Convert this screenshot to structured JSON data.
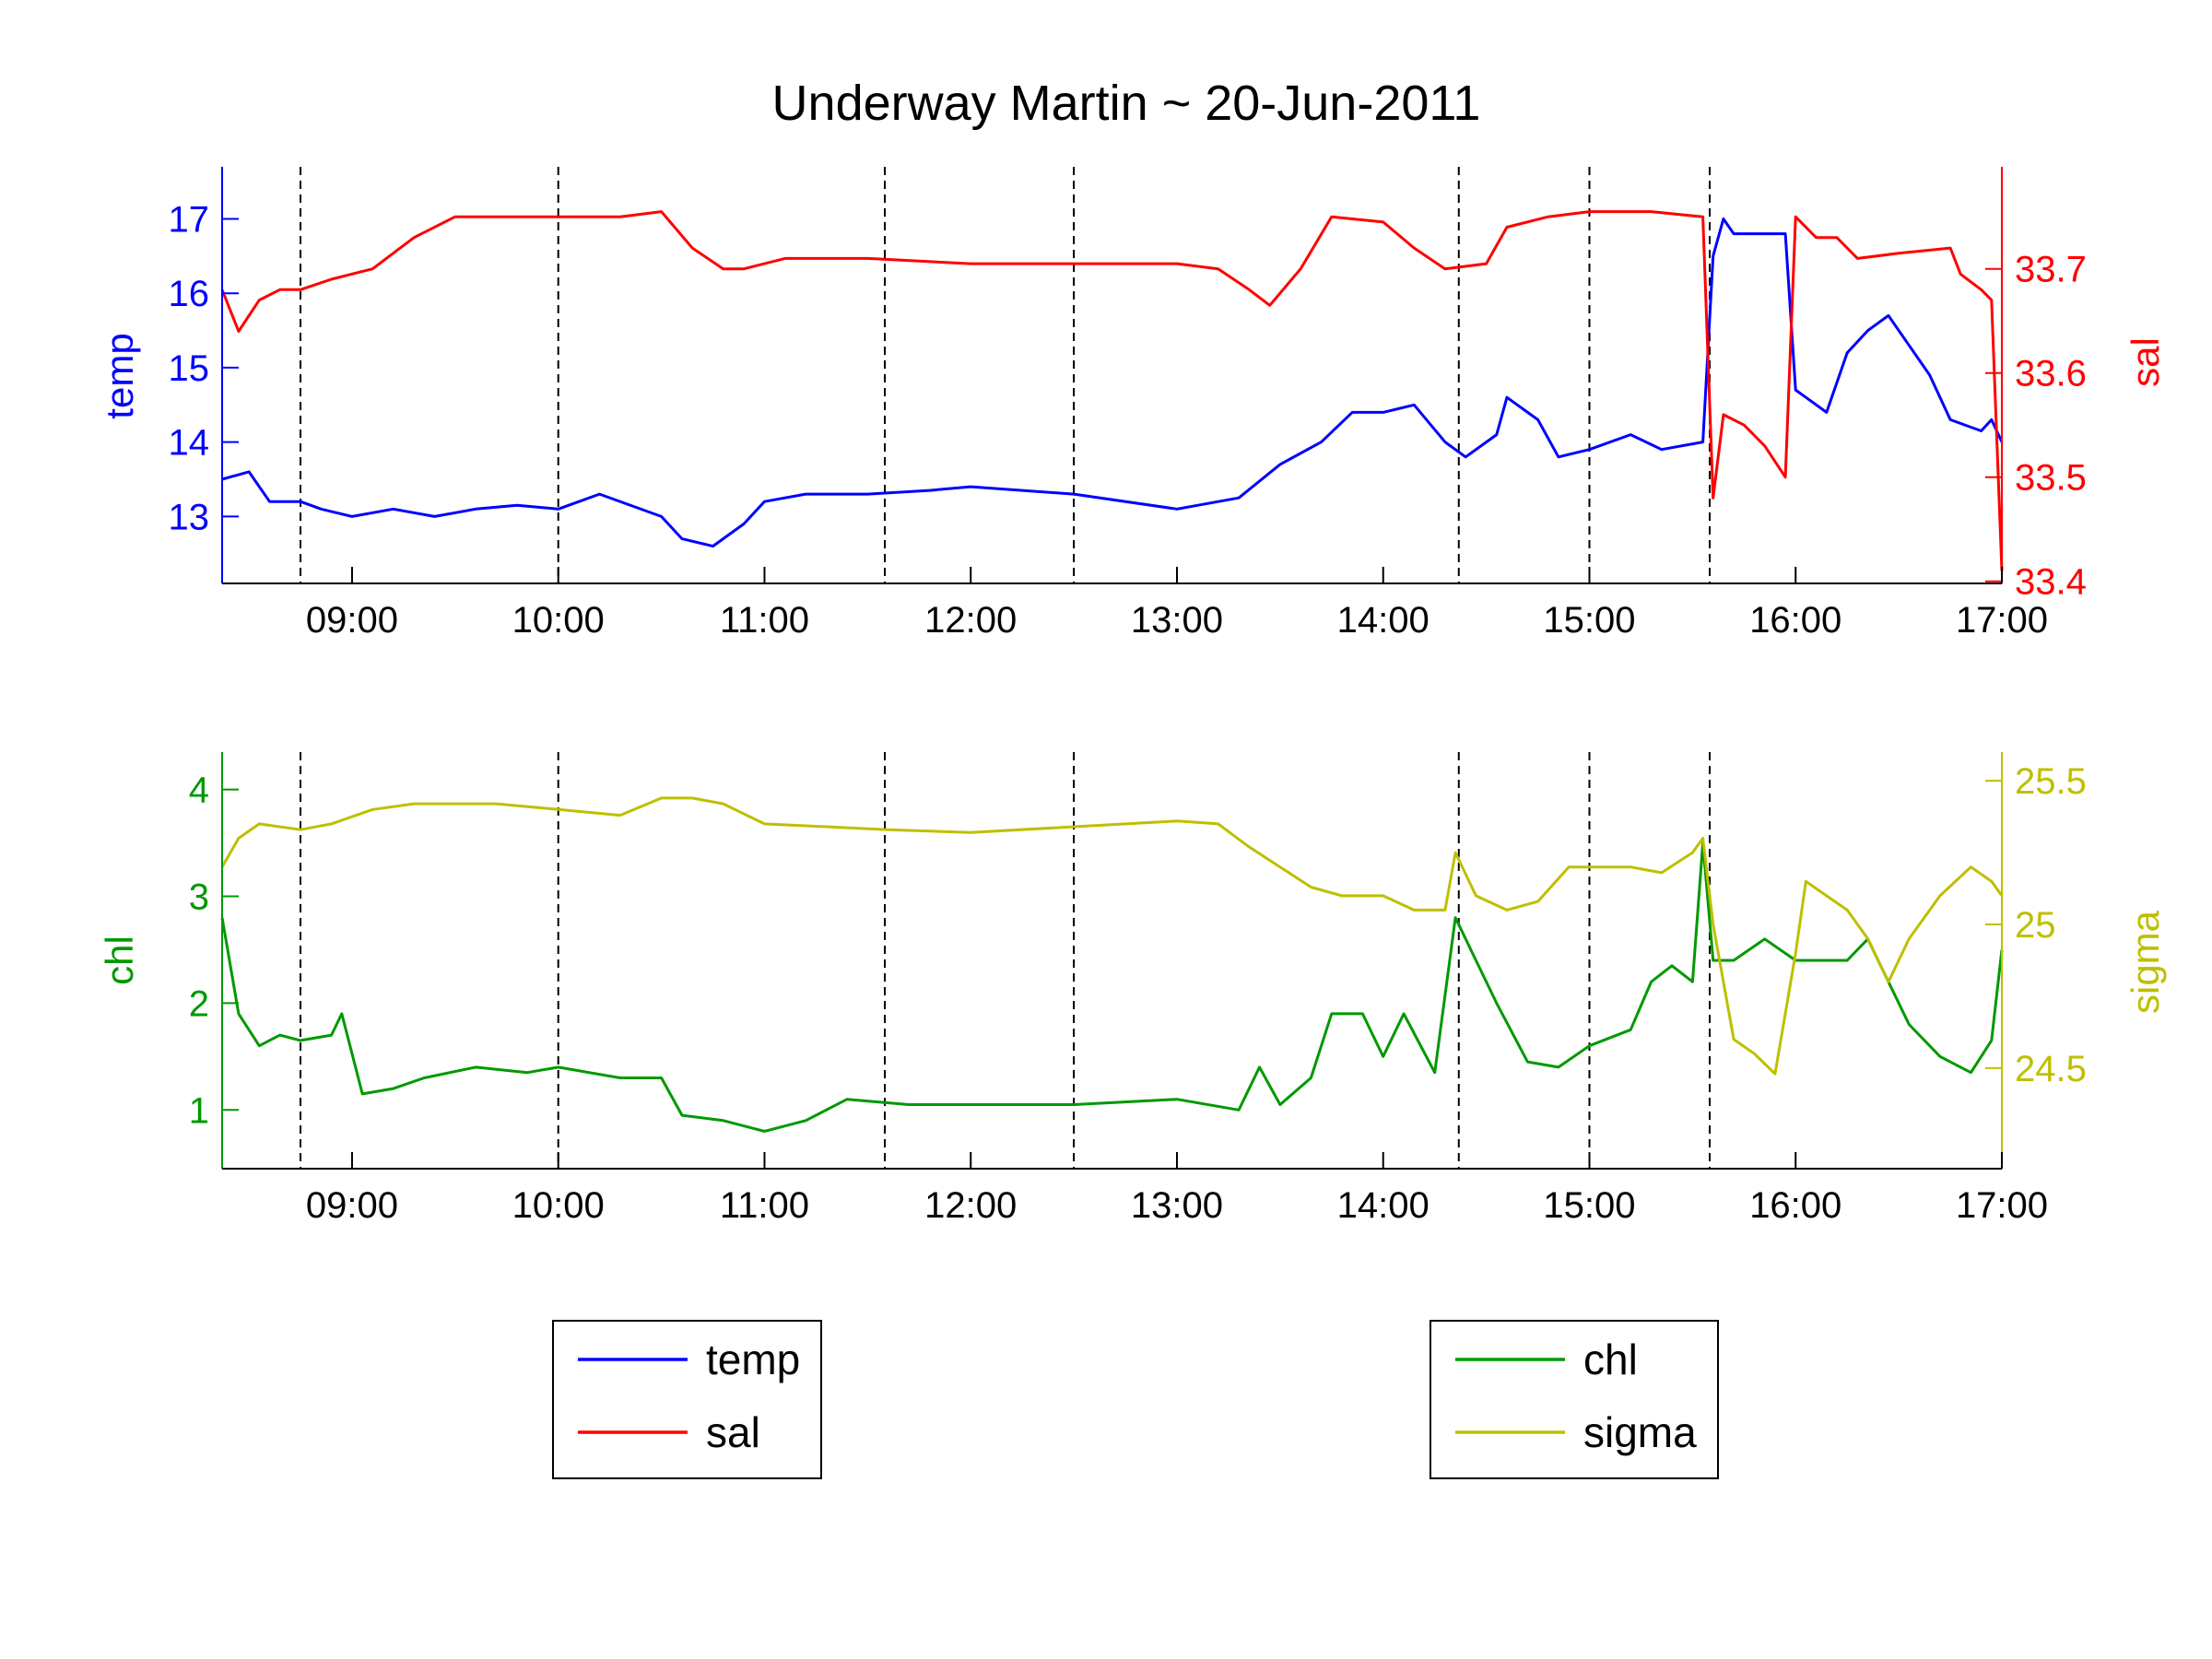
{
  "title": "Underway Martin ~ 20-Jun-2011",
  "x_axis": {
    "ticks": [
      "09:00",
      "10:00",
      "11:00",
      "12:00",
      "13:00",
      "14:00",
      "15:00",
      "16:00",
      "17:00"
    ],
    "range_hours": [
      8.37,
      17.0
    ]
  },
  "vertical_markers": [
    "08:45",
    "10:00",
    "11:35",
    "12:30",
    "14:22",
    "15:00",
    "15:35"
  ],
  "colors": {
    "temp": "#0000ff",
    "sal": "#ff0000",
    "chl": "#009900",
    "sigma": "#bfbf00",
    "axis": "#000000",
    "marker": "#000000"
  },
  "legends": {
    "top": {
      "entries": [
        "temp",
        "sal"
      ]
    },
    "bottom": {
      "entries": [
        "chl",
        "sigma"
      ]
    }
  },
  "chart_data": [
    {
      "type": "line",
      "title": "Underway Martin ~ 20-Jun-2011",
      "x_unit": "time of day (hours)",
      "y_left": {
        "label": "temp",
        "ylim": [
          12.1,
          17.7
        ],
        "ticks": [
          "13",
          "14",
          "15",
          "16",
          "17"
        ],
        "tick_values": [
          13,
          14,
          15,
          16,
          17
        ]
      },
      "y_right": {
        "label": "sal",
        "ylim": [
          33.398,
          33.798
        ],
        "ticks": [
          "33.4",
          "33.5",
          "33.6",
          "33.7"
        ],
        "tick_values": [
          33.4,
          33.5,
          33.6,
          33.7
        ]
      },
      "series": [
        {
          "name": "temp",
          "axis": "left",
          "x": [
            8.37,
            8.5,
            8.6,
            8.75,
            8.85,
            9.0,
            9.2,
            9.4,
            9.6,
            9.8,
            10.0,
            10.2,
            10.5,
            10.6,
            10.75,
            10.9,
            11.0,
            11.2,
            11.5,
            11.8,
            12.0,
            12.5,
            13.0,
            13.3,
            13.5,
            13.7,
            13.85,
            14.0,
            14.15,
            14.3,
            14.4,
            14.55,
            14.6,
            14.75,
            14.85,
            15.0,
            15.2,
            15.35,
            15.55,
            15.6,
            15.65,
            15.7,
            15.85,
            15.95,
            16.0,
            16.05,
            16.15,
            16.25,
            16.35,
            16.45,
            16.55,
            16.65,
            16.75,
            16.85,
            16.9,
            16.95,
            17.0
          ],
          "y": [
            13.5,
            13.6,
            13.2,
            13.2,
            13.1,
            13.0,
            13.1,
            13.0,
            13.1,
            13.15,
            13.1,
            13.3,
            13.0,
            12.7,
            12.6,
            12.9,
            13.2,
            13.3,
            13.3,
            13.35,
            13.4,
            13.3,
            13.1,
            13.25,
            13.7,
            14.0,
            14.4,
            14.4,
            14.5,
            14.0,
            13.8,
            14.1,
            14.6,
            14.3,
            13.8,
            13.9,
            14.1,
            13.9,
            14.0,
            16.5,
            17.0,
            16.8,
            16.8,
            16.8,
            14.7,
            14.6,
            14.4,
            15.2,
            15.5,
            15.7,
            15.3,
            14.9,
            14.3,
            14.2,
            14.15,
            14.3,
            14.0
          ]
        },
        {
          "name": "sal",
          "axis": "right",
          "x": [
            8.37,
            8.45,
            8.55,
            8.65,
            8.75,
            8.9,
            9.1,
            9.3,
            9.5,
            9.7,
            10.0,
            10.3,
            10.5,
            10.65,
            10.8,
            10.9,
            11.1,
            11.5,
            12.0,
            12.5,
            13.0,
            13.2,
            13.35,
            13.45,
            13.6,
            13.75,
            14.0,
            14.15,
            14.3,
            14.5,
            14.6,
            14.8,
            15.0,
            15.3,
            15.55,
            15.6,
            15.65,
            15.75,
            15.85,
            15.95,
            16.0,
            16.1,
            16.2,
            16.3,
            16.5,
            16.75,
            16.8,
            16.9,
            16.95,
            17.0
          ],
          "y": [
            33.68,
            33.64,
            33.67,
            33.68,
            33.68,
            33.69,
            33.7,
            33.73,
            33.75,
            33.75,
            33.75,
            33.75,
            33.755,
            33.72,
            33.7,
            33.7,
            33.71,
            33.71,
            33.705,
            33.705,
            33.705,
            33.7,
            33.68,
            33.665,
            33.7,
            33.75,
            33.745,
            33.72,
            33.7,
            33.705,
            33.74,
            33.75,
            33.755,
            33.755,
            33.75,
            33.48,
            33.56,
            33.55,
            33.53,
            33.5,
            33.75,
            33.73,
            33.73,
            33.71,
            33.715,
            33.72,
            33.695,
            33.68,
            33.67,
            33.41
          ]
        }
      ]
    },
    {
      "type": "line",
      "y_left": {
        "label": "chl",
        "ylim": [
          0.45,
          4.35
        ],
        "ticks": [
          "1",
          "2",
          "3",
          "4"
        ],
        "tick_values": [
          1,
          2,
          3,
          4
        ]
      },
      "y_right": {
        "label": "sigma",
        "ylim": [
          24.15,
          25.6
        ],
        "ticks": [
          "24.5",
          "25",
          "25.5"
        ],
        "tick_values": [
          24.5,
          25.0,
          25.5
        ]
      },
      "series": [
        {
          "name": "chl",
          "axis": "left",
          "x": [
            8.37,
            8.45,
            8.55,
            8.65,
            8.75,
            8.9,
            8.95,
            9.05,
            9.2,
            9.35,
            9.6,
            9.85,
            10.0,
            10.3,
            10.5,
            10.6,
            10.8,
            11.0,
            11.2,
            11.4,
            11.7,
            12.0,
            12.5,
            13.0,
            13.3,
            13.4,
            13.5,
            13.65,
            13.75,
            13.9,
            14.0,
            14.1,
            14.25,
            14.35,
            14.45,
            14.55,
            14.7,
            14.85,
            15.0,
            15.2,
            15.3,
            15.4,
            15.5,
            15.55,
            15.6,
            15.7,
            15.85,
            16.0,
            16.15,
            16.25,
            16.35,
            16.45,
            16.55,
            16.7,
            16.85,
            16.95,
            17.0
          ],
          "y": [
            2.8,
            1.9,
            1.6,
            1.7,
            1.65,
            1.7,
            1.9,
            1.15,
            1.2,
            1.3,
            1.4,
            1.35,
            1.4,
            1.3,
            1.3,
            0.95,
            0.9,
            0.8,
            0.9,
            1.1,
            1.05,
            1.05,
            1.05,
            1.1,
            1.0,
            1.4,
            1.05,
            1.3,
            1.9,
            1.9,
            1.5,
            1.9,
            1.35,
            2.8,
            2.4,
            2.0,
            1.45,
            1.4,
            1.6,
            1.75,
            2.2,
            2.35,
            2.2,
            3.5,
            2.4,
            2.4,
            2.6,
            2.4,
            2.4,
            2.4,
            2.6,
            2.2,
            1.8,
            1.5,
            1.35,
            1.65,
            2.5
          ]
        },
        {
          "name": "sigma",
          "axis": "right",
          "x": [
            8.37,
            8.45,
            8.55,
            8.75,
            8.9,
            9.1,
            9.3,
            9.5,
            9.7,
            10.0,
            10.3,
            10.5,
            10.65,
            10.8,
            11.0,
            11.3,
            11.6,
            12.0,
            12.5,
            13.0,
            13.2,
            13.35,
            13.5,
            13.65,
            13.8,
            14.0,
            14.15,
            14.3,
            14.35,
            14.45,
            14.6,
            14.75,
            14.9,
            15.0,
            15.2,
            15.35,
            15.5,
            15.55,
            15.6,
            15.7,
            15.8,
            15.9,
            16.0,
            16.05,
            16.15,
            16.25,
            16.35,
            16.45,
            16.55,
            16.7,
            16.85,
            16.95,
            17.0
          ],
          "y": [
            25.2,
            25.3,
            25.35,
            25.33,
            25.35,
            25.4,
            25.42,
            25.42,
            25.42,
            25.4,
            25.38,
            25.44,
            25.44,
            25.42,
            25.35,
            25.34,
            25.33,
            25.32,
            25.34,
            25.36,
            25.35,
            25.27,
            25.2,
            25.13,
            25.1,
            25.1,
            25.05,
            25.05,
            25.25,
            25.1,
            25.05,
            25.08,
            25.2,
            25.2,
            25.2,
            25.18,
            25.25,
            25.3,
            25.0,
            24.6,
            24.55,
            24.48,
            24.9,
            25.15,
            25.1,
            25.05,
            24.95,
            24.8,
            24.95,
            25.1,
            25.2,
            25.15,
            25.1
          ]
        }
      ]
    }
  ]
}
